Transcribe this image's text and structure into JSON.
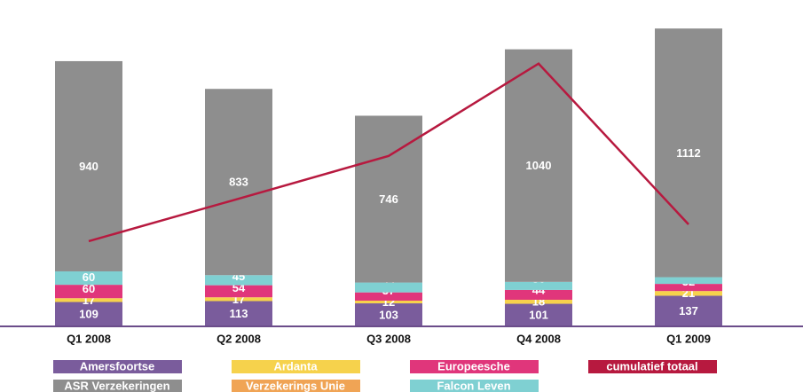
{
  "chart_data": {
    "type": "bar",
    "stacked": true,
    "categories": [
      "Q1 2008",
      "Q2 2008",
      "Q3 2008",
      "Q4 2008",
      "Q1 2009"
    ],
    "series": [
      {
        "name": "Amersfoortse",
        "color": "#7a5c9c",
        "values": [
          109,
          113,
          103,
          101,
          137
        ]
      },
      {
        "name": "ASR Verzekeringen",
        "color": "#8e8e8e",
        "values": [
          940,
          833,
          746,
          1040,
          1112
        ]
      },
      {
        "name": "Ardanta",
        "color": "#f6d24c",
        "values": [
          17,
          17,
          12,
          18,
          21
        ]
      },
      {
        "name": "Verzekerings Unie",
        "color": "#f0a455",
        "values": [
          null,
          null,
          null,
          null,
          null
        ]
      },
      {
        "name": "Europeesche",
        "color": "#e0367b",
        "values": [
          60,
          54,
          37,
          44,
          32
        ]
      },
      {
        "name": "Falcon Leven",
        "color": "#7fd0d2",
        "values": [
          60,
          45,
          44,
          36,
          30
        ]
      }
    ],
    "line": {
      "name": "cumulatief totaal",
      "color": "#b7193f",
      "values": [
        381,
        571,
        762,
        1175,
        456
      ]
    },
    "ylim": [
      0,
      1400
    ]
  }
}
